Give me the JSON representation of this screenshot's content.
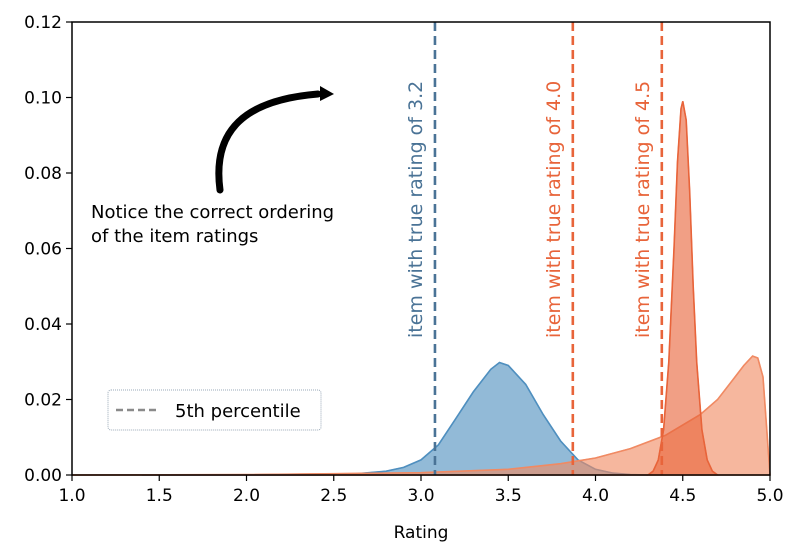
{
  "chart_data": {
    "type": "area",
    "xlabel": "Rating",
    "ylabel": "",
    "xlim": [
      1.0,
      5.0
    ],
    "ylim": [
      0.0,
      0.12
    ],
    "xticks": [
      "1.0",
      "1.5",
      "2.0",
      "2.5",
      "3.0",
      "3.5",
      "4.0",
      "4.5",
      "5.0"
    ],
    "yticks": [
      "0.00",
      "0.02",
      "0.04",
      "0.06",
      "0.08",
      "0.10",
      "0.12"
    ],
    "grid": false,
    "legend": {
      "position": "bottom-left",
      "entries": [
        "5th percentile"
      ]
    },
    "series": [
      {
        "color": "#4f8fbf",
        "x": [
          1.4,
          2.4,
          2.6,
          2.8,
          2.9,
          3.0,
          3.1,
          3.2,
          3.3,
          3.4,
          3.45,
          3.5,
          3.6,
          3.7,
          3.8,
          3.9,
          4.0,
          4.1,
          4.2,
          4.3
        ],
        "y": [
          0.0,
          0.0,
          0.0002,
          0.001,
          0.002,
          0.004,
          0.008,
          0.015,
          0.022,
          0.028,
          0.0298,
          0.029,
          0.024,
          0.016,
          0.009,
          0.004,
          0.0015,
          0.0005,
          0.0001,
          0.0
        ]
      },
      {
        "color": "#f08a63",
        "x": [
          1.0,
          2.0,
          3.0,
          3.5,
          3.8,
          4.0,
          4.2,
          4.4,
          4.6,
          4.7,
          4.8,
          4.85,
          4.9,
          4.93,
          4.96,
          5.0
        ],
        "y": [
          0.0,
          0.0001,
          0.0006,
          0.0015,
          0.003,
          0.0045,
          0.007,
          0.0105,
          0.016,
          0.02,
          0.026,
          0.029,
          0.0315,
          0.031,
          0.026,
          0.0
        ]
      },
      {
        "color": "#e8643a",
        "x": [
          4.3,
          4.33,
          4.36,
          4.39,
          4.42,
          4.45,
          4.47,
          4.49,
          4.5,
          4.52,
          4.54,
          4.56,
          4.58,
          4.61,
          4.64,
          4.67,
          4.7
        ],
        "y": [
          0.0,
          0.001,
          0.004,
          0.012,
          0.03,
          0.06,
          0.083,
          0.097,
          0.099,
          0.094,
          0.075,
          0.05,
          0.03,
          0.012,
          0.004,
          0.001,
          0.0
        ]
      }
    ],
    "percentile_lines": [
      {
        "x": 3.08,
        "label": "item with true rating of  3.2",
        "color": "#4a7396"
      },
      {
        "x": 3.87,
        "label": "item with true rating of  4.0",
        "color": "#e8643a"
      },
      {
        "x": 4.38,
        "label": "item with true rating of  4.5",
        "color": "#e8643a"
      }
    ],
    "annotation": {
      "line1": "Notice the correct ordering",
      "line2": " of the item ratings"
    }
  }
}
